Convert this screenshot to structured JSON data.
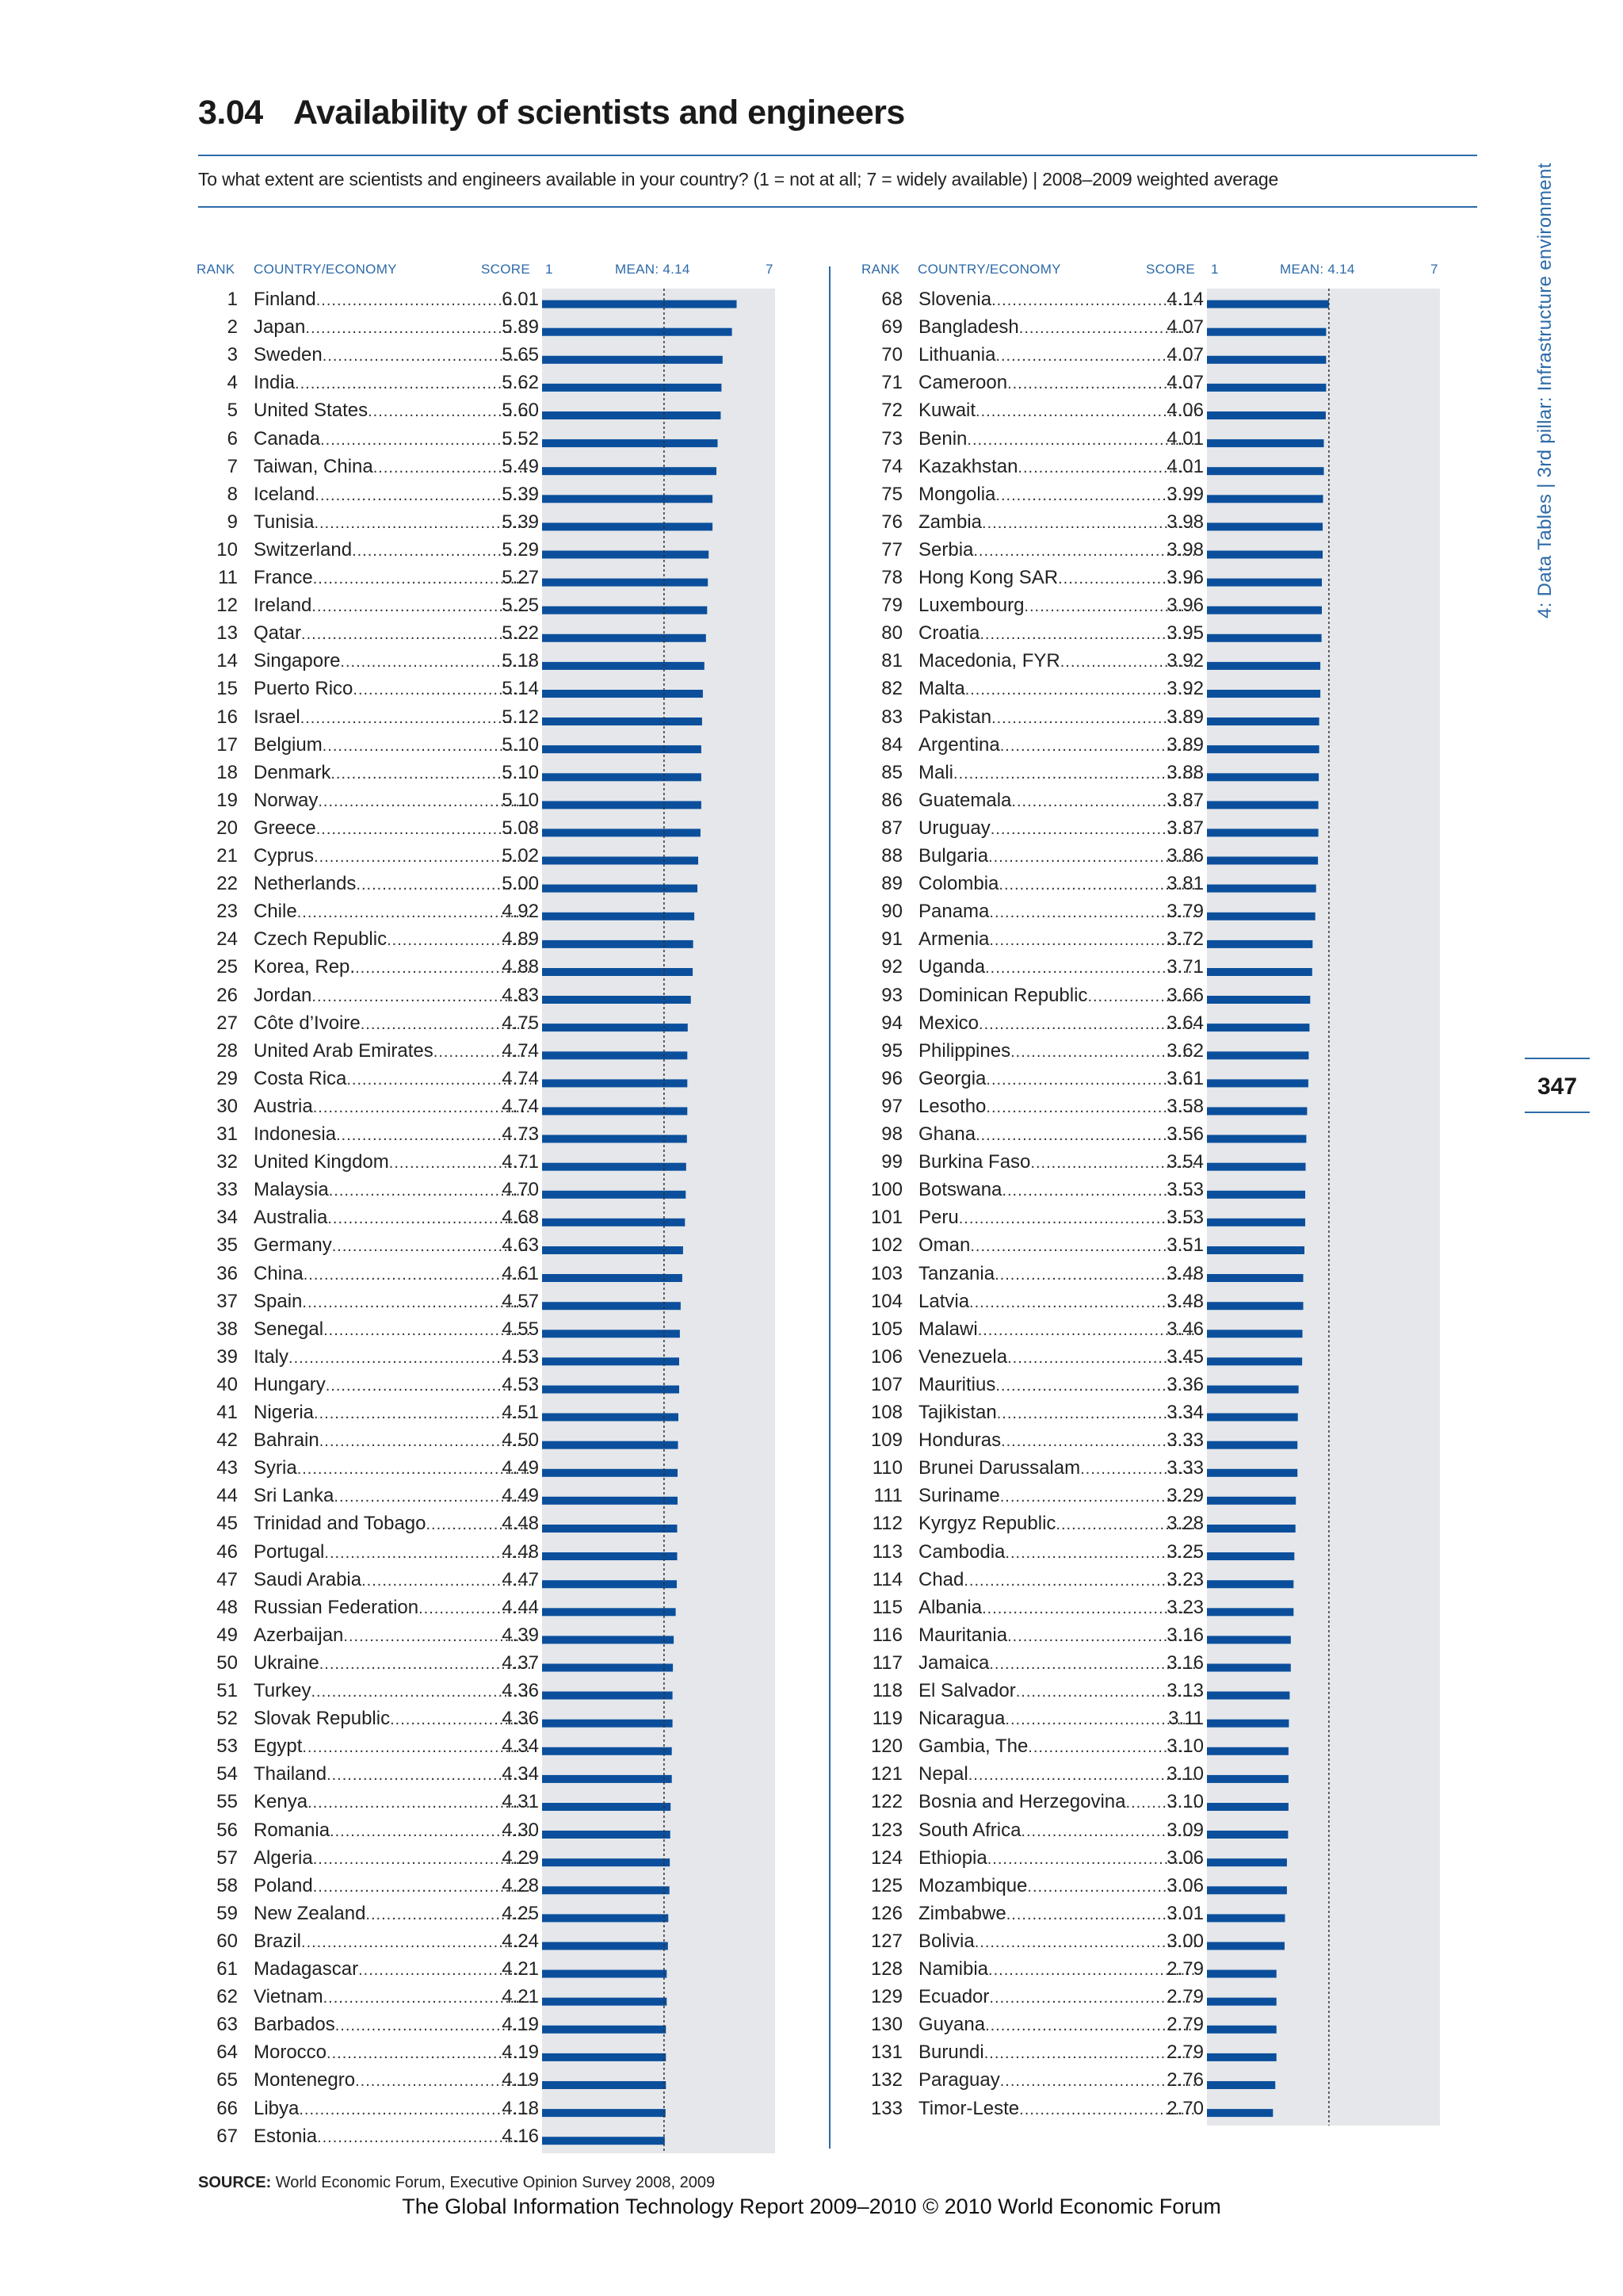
{
  "header": {
    "number": "3.04",
    "title": "Availability of scientists and engineers",
    "question": "To what extent are scientists and engineers available in your country? (1 = not at all; 7 = widely available)  |  2008–2009 weighted average"
  },
  "column_headers": {
    "rank": "RANK",
    "country": "COUNTRY/ECONOMY",
    "score": "SCORE",
    "scale_min": "1",
    "mean": "MEAN: 4.14",
    "scale_max": "7"
  },
  "side_tab": "4: Data Tables  |  3rd pillar: Infrastructure environment",
  "page_number": "347",
  "source": {
    "label": "SOURCE:",
    "text": " World Economic Forum, Executive Opinion Survey 2008, 2009"
  },
  "footer": "The Global Information Technology Report 2009–2010 © 2010 World Economic Forum",
  "colors": {
    "bar": "#0b4f9c",
    "panel": "#e5e7ea",
    "accent": "#2d6aa8",
    "mean_line": "#333333"
  },
  "chart_data": {
    "type": "bar",
    "orientation": "horizontal",
    "xlim": [
      1,
      7
    ],
    "mean": 4.14,
    "rows": [
      [
        "1",
        "Finland",
        "6.01",
        6.01
      ],
      [
        "2",
        "Japan",
        "5.89",
        5.89
      ],
      [
        "3",
        "Sweden",
        "5.65",
        5.65
      ],
      [
        "4",
        "India",
        "5.62",
        5.62
      ],
      [
        "5",
        "United States",
        "5.60",
        5.6
      ],
      [
        "6",
        "Canada",
        "5.52",
        5.52
      ],
      [
        "7",
        "Taiwan, China",
        "5.49",
        5.49
      ],
      [
        "8",
        "Iceland",
        "5.39",
        5.39
      ],
      [
        "9",
        "Tunisia",
        "5.39",
        5.39
      ],
      [
        "10",
        "Switzerland",
        "5.29",
        5.29
      ],
      [
        "11",
        "France",
        "5.27",
        5.27
      ],
      [
        "12",
        "Ireland",
        "5.25",
        5.25
      ],
      [
        "13",
        "Qatar",
        "5.22",
        5.22
      ],
      [
        "14",
        "Singapore",
        "5.18",
        5.18
      ],
      [
        "15",
        "Puerto Rico",
        "5.14",
        5.14
      ],
      [
        "16",
        "Israel",
        "5.12",
        5.12
      ],
      [
        "17",
        "Belgium",
        "5.10",
        5.1
      ],
      [
        "18",
        "Denmark",
        "5.10",
        5.1
      ],
      [
        "19",
        "Norway",
        "5.10",
        5.1
      ],
      [
        "20",
        "Greece",
        "5.08",
        5.08
      ],
      [
        "21",
        "Cyprus",
        "5.02",
        5.02
      ],
      [
        "22",
        "Netherlands",
        "5.00",
        5.0
      ],
      [
        "23",
        "Chile",
        "4.92",
        4.92
      ],
      [
        "24",
        "Czech Republic",
        "4.89",
        4.89
      ],
      [
        "25",
        "Korea, Rep.",
        "4.88",
        4.88
      ],
      [
        "26",
        "Jordan",
        "4.83",
        4.83
      ],
      [
        "27",
        "Côte d’Ivoire",
        "4.75",
        4.75
      ],
      [
        "28",
        "United Arab Emirates",
        "4.74",
        4.74
      ],
      [
        "29",
        "Costa Rica",
        "4.74",
        4.74
      ],
      [
        "30",
        "Austria",
        "4.74",
        4.74
      ],
      [
        "31",
        "Indonesia",
        "4.73",
        4.73
      ],
      [
        "32",
        "United Kingdom",
        "4.71",
        4.71
      ],
      [
        "33",
        "Malaysia",
        "4.70",
        4.7
      ],
      [
        "34",
        "Australia",
        "4.68",
        4.68
      ],
      [
        "35",
        "Germany",
        "4.63",
        4.63
      ],
      [
        "36",
        "China",
        "4.61",
        4.61
      ],
      [
        "37",
        "Spain",
        "4.57",
        4.57
      ],
      [
        "38",
        "Senegal",
        "4.55",
        4.55
      ],
      [
        "39",
        "Italy",
        "4.53",
        4.53
      ],
      [
        "40",
        "Hungary",
        "4.53",
        4.53
      ],
      [
        "41",
        "Nigeria",
        "4.51",
        4.51
      ],
      [
        "42",
        "Bahrain",
        "4.50",
        4.5
      ],
      [
        "43",
        "Syria",
        "4.49",
        4.49
      ],
      [
        "44",
        "Sri Lanka",
        "4.49",
        4.49
      ],
      [
        "45",
        "Trinidad and Tobago",
        "4.48",
        4.48
      ],
      [
        "46",
        "Portugal",
        "4.48",
        4.48
      ],
      [
        "47",
        "Saudi Arabia",
        "4.47",
        4.47
      ],
      [
        "48",
        "Russian Federation",
        "4.44",
        4.44
      ],
      [
        "49",
        "Azerbaijan",
        "4.39",
        4.39
      ],
      [
        "50",
        "Ukraine",
        "4.37",
        4.37
      ],
      [
        "51",
        "Turkey",
        "4.36",
        4.36
      ],
      [
        "52",
        "Slovak Republic",
        "4.36",
        4.36
      ],
      [
        "53",
        "Egypt",
        "4.34",
        4.34
      ],
      [
        "54",
        "Thailand",
        "4.34",
        4.34
      ],
      [
        "55",
        "Kenya",
        "4.31",
        4.31
      ],
      [
        "56",
        "Romania",
        "4.30",
        4.3
      ],
      [
        "57",
        "Algeria",
        "4.29",
        4.29
      ],
      [
        "58",
        "Poland",
        "4.28",
        4.28
      ],
      [
        "59",
        "New Zealand",
        "4.25",
        4.25
      ],
      [
        "60",
        "Brazil",
        "4.24",
        4.24
      ],
      [
        "61",
        "Madagascar",
        "4.21",
        4.21
      ],
      [
        "62",
        "Vietnam",
        "4.21",
        4.21
      ],
      [
        "63",
        "Barbados",
        "4.19",
        4.19
      ],
      [
        "64",
        "Morocco",
        "4.19",
        4.19
      ],
      [
        "65",
        "Montenegro",
        "4.19",
        4.19
      ],
      [
        "66",
        "Libya",
        "4.18",
        4.18
      ],
      [
        "67",
        "Estonia",
        "4.16",
        4.16
      ],
      [
        "68",
        "Slovenia",
        "4.14",
        4.14
      ],
      [
        "69",
        "Bangladesh",
        "4.07",
        4.07
      ],
      [
        "70",
        "Lithuania",
        "4.07",
        4.07
      ],
      [
        "71",
        "Cameroon",
        "4.07",
        4.07
      ],
      [
        "72",
        "Kuwait",
        "4.06",
        4.06
      ],
      [
        "73",
        "Benin",
        "4.01",
        4.01
      ],
      [
        "74",
        "Kazakhstan",
        "4.01",
        4.01
      ],
      [
        "75",
        "Mongolia",
        "3.99",
        3.99
      ],
      [
        "76",
        "Zambia",
        "3.98",
        3.98
      ],
      [
        "77",
        "Serbia",
        "3.98",
        3.98
      ],
      [
        "78",
        "Hong Kong SAR",
        "3.96",
        3.96
      ],
      [
        "79",
        "Luxembourg",
        "3.96",
        3.96
      ],
      [
        "80",
        "Croatia",
        "3.95",
        3.95
      ],
      [
        "81",
        "Macedonia, FYR",
        "3.92",
        3.92
      ],
      [
        "82",
        "Malta",
        "3.92",
        3.92
      ],
      [
        "83",
        "Pakistan",
        "3.89",
        3.89
      ],
      [
        "84",
        "Argentina",
        "3.89",
        3.89
      ],
      [
        "85",
        "Mali",
        "3.88",
        3.88
      ],
      [
        "86",
        "Guatemala",
        "3.87",
        3.87
      ],
      [
        "87",
        "Uruguay",
        "3.87",
        3.87
      ],
      [
        "88",
        "Bulgaria",
        "3.86",
        3.86
      ],
      [
        "89",
        "Colombia",
        "3.81",
        3.81
      ],
      [
        "90",
        "Panama",
        "3.79",
        3.79
      ],
      [
        "91",
        "Armenia",
        "3.72",
        3.72
      ],
      [
        "92",
        "Uganda",
        "3.71",
        3.71
      ],
      [
        "93",
        "Dominican Republic",
        "3.66",
        3.66
      ],
      [
        "94",
        "Mexico",
        "3.64",
        3.64
      ],
      [
        "95",
        "Philippines",
        "3.62",
        3.62
      ],
      [
        "96",
        "Georgia",
        "3.61",
        3.61
      ],
      [
        "97",
        "Lesotho",
        "3.58",
        3.58
      ],
      [
        "98",
        "Ghana",
        "3.56",
        3.56
      ],
      [
        "99",
        "Burkina Faso",
        "3.54",
        3.54
      ],
      [
        "100",
        "Botswana",
        "3.53",
        3.53
      ],
      [
        "101",
        "Peru",
        "3.53",
        3.53
      ],
      [
        "102",
        "Oman",
        "3.51",
        3.51
      ],
      [
        "103",
        "Tanzania",
        "3.48",
        3.48
      ],
      [
        "104",
        "Latvia",
        "3.48",
        3.48
      ],
      [
        "105",
        "Malawi",
        "3.46",
        3.46
      ],
      [
        "106",
        "Venezuela",
        "3.45",
        3.45
      ],
      [
        "107",
        "Mauritius",
        "3.36",
        3.36
      ],
      [
        "108",
        "Tajikistan",
        "3.34",
        3.34
      ],
      [
        "109",
        "Honduras",
        "3.33",
        3.33
      ],
      [
        "110",
        "Brunei Darussalam",
        "3.33",
        3.33
      ],
      [
        "111",
        "Suriname",
        "3.29",
        3.29
      ],
      [
        "112",
        "Kyrgyz Republic",
        "3.28",
        3.28
      ],
      [
        "113",
        "Cambodia",
        "3.25",
        3.25
      ],
      [
        "114",
        "Chad",
        "3.23",
        3.23
      ],
      [
        "115",
        "Albania",
        "3.23",
        3.23
      ],
      [
        "116",
        "Mauritania",
        "3.16",
        3.16
      ],
      [
        "117",
        "Jamaica",
        "3.16",
        3.16
      ],
      [
        "118",
        "El Salvador",
        "3.13",
        3.13
      ],
      [
        "119",
        "Nicaragua",
        "3.11",
        3.11
      ],
      [
        "120",
        "Gambia, The",
        "3.10",
        3.1
      ],
      [
        "121",
        "Nepal",
        "3.10",
        3.1
      ],
      [
        "122",
        "Bosnia and Herzegovina",
        "3.10",
        3.1
      ],
      [
        "123",
        "South Africa",
        "3.09",
        3.09
      ],
      [
        "124",
        "Ethiopia",
        "3.06",
        3.06
      ],
      [
        "125",
        "Mozambique",
        "3.06",
        3.06
      ],
      [
        "126",
        "Zimbabwe",
        "3.01",
        3.01
      ],
      [
        "127",
        "Bolivia",
        "3.00",
        3.0
      ],
      [
        "128",
        "Namibia",
        "2.79",
        2.79
      ],
      [
        "129",
        "Ecuador",
        "2.79",
        2.79
      ],
      [
        "130",
        "Guyana",
        "2.79",
        2.79
      ],
      [
        "131",
        "Burundi",
        "2.79",
        2.79
      ],
      [
        "132",
        "Paraguay",
        "2.76",
        2.76
      ],
      [
        "133",
        "Timor-Leste",
        "2.70",
        2.7
      ]
    ]
  }
}
